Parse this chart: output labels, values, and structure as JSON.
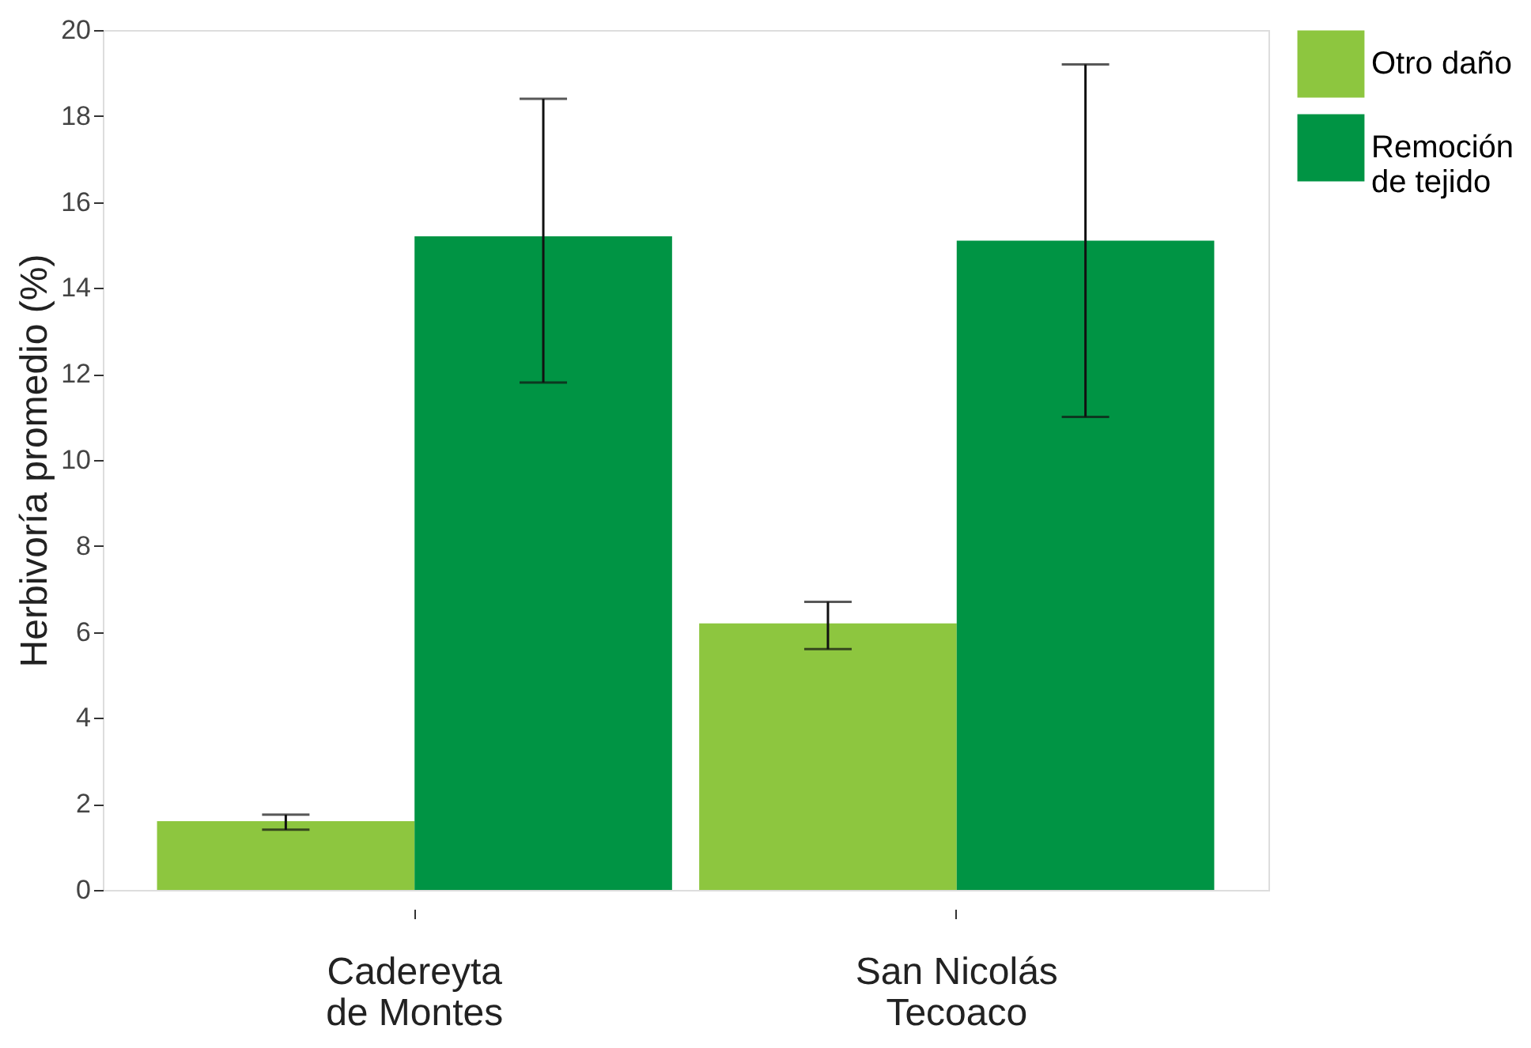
{
  "chart_data": {
    "type": "bar",
    "ylabel": "Herbivoría promedio (%)",
    "categories": [
      "Cadereyta de Montes",
      "San Nicolás Tecoaco"
    ],
    "series": [
      {
        "name": "Otro daño",
        "color": "#8dc63f",
        "values": [
          1.6,
          6.2
        ],
        "errors": [
          [
            1.4,
            1.75
          ],
          [
            5.6,
            6.7
          ]
        ]
      },
      {
        "name": "Remoción de tejido",
        "color": "#009444",
        "values": [
          15.2,
          15.1
        ],
        "errors": [
          [
            11.8,
            18.4
          ],
          [
            11.0,
            19.2
          ]
        ]
      }
    ],
    "ylim": [
      0,
      20
    ],
    "yticks": [
      0,
      2,
      4,
      6,
      8,
      10,
      12,
      14,
      16,
      18,
      20
    ],
    "grid": false,
    "legend": "right"
  }
}
